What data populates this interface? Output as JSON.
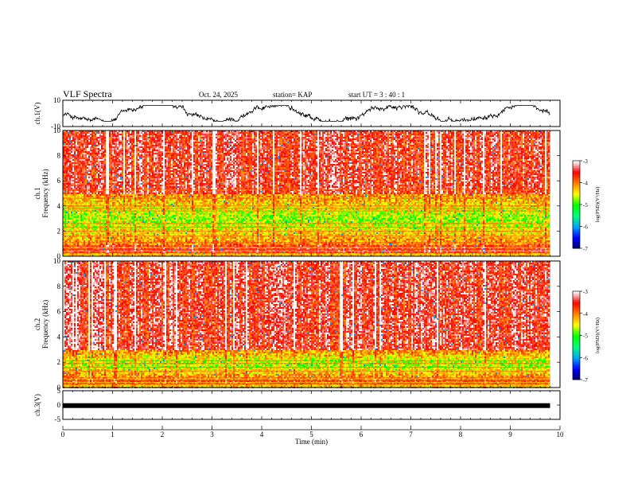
{
  "header": {
    "title": "VLF Spectra",
    "date": "Oct. 24, 2025",
    "station": "station= KAP",
    "start": "start  UT  =   3  : 40 : 1"
  },
  "chart_data": {
    "type": "heatmap",
    "title": "VLF Spectra",
    "xlabel": "Time  (min)",
    "xlim": [
      0,
      10
    ],
    "xticks": [
      "0",
      "1",
      "2",
      "3",
      "4",
      "5",
      "6",
      "7",
      "8",
      "9",
      "10"
    ],
    "data_end_min": 9.8,
    "panels": [
      {
        "name": "ch1-waveform",
        "type": "line",
        "ylabel": "ch.1(V)",
        "ylim": [
          -10,
          10
        ],
        "yticks": [
          "10",
          "-10"
        ],
        "trace_range": [
          -6,
          6
        ]
      },
      {
        "name": "ch1-spectrogram",
        "type": "heatmap",
        "ylabel_line1": "ch.1",
        "ylabel_line2": "Frequency  (kHz)",
        "ylim": [
          0,
          10
        ],
        "yticks": [
          "0",
          "2",
          "4",
          "6",
          "8",
          "10"
        ],
        "quiet_band_khz": [
          1.0,
          5.0
        ],
        "harmonic_lines_khz": [
          1.1,
          1.6,
          2.0,
          2.3,
          2.6,
          3.6,
          3.8,
          4.0,
          4.6,
          5.3
        ]
      },
      {
        "name": "ch2-spectrogram",
        "type": "heatmap",
        "ylabel_line1": "ch.2",
        "ylabel_line2": "Frequency  (kHz)",
        "ylim": [
          0,
          10
        ],
        "yticks": [
          "0",
          "2",
          "4",
          "6",
          "8",
          "10"
        ],
        "quiet_band_khz": [
          0.8,
          3.0
        ],
        "harmonic_lines_khz": [
          0.8,
          1.3,
          1.6,
          1.9,
          2.1
        ]
      },
      {
        "name": "ch3-waveform",
        "type": "line",
        "ylabel": "ch.3(V)",
        "ylim": [
          -5,
          5
        ],
        "yticks": [
          "5",
          "0",
          "-5"
        ],
        "trace_level": -0.2
      }
    ],
    "colorbar": {
      "label": "log(PSD)(V²/Hz)",
      "range": [
        -7,
        -3
      ],
      "ticks": [
        "-3",
        "-4",
        "-5",
        "-6",
        "-7"
      ],
      "colors": [
        "#000060",
        "#0000ff",
        "#00a0ff",
        "#00ff80",
        "#00ff00",
        "#ffff00",
        "#ff8000",
        "#ff0000",
        "#ffffff"
      ]
    }
  }
}
